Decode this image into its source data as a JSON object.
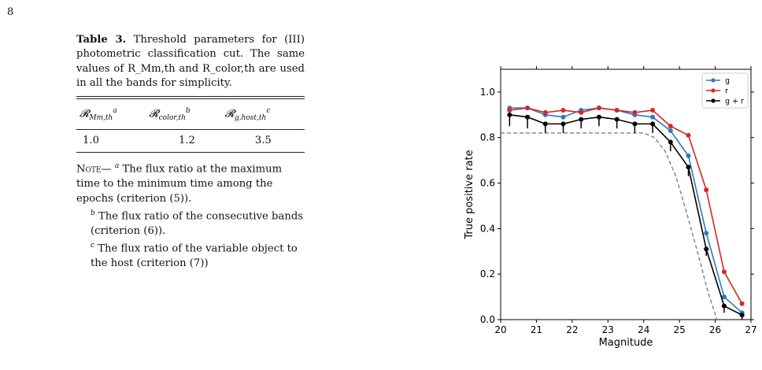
{
  "page_number": "8",
  "table": {
    "caption_label": "Table 3.",
    "caption_text": "Threshold parameters for (III) photometric classification cut. The same values of R_Mm,th and R_color,th are used in all the bands for simplicity.",
    "headers": [
      {
        "main": "𝓡",
        "sub": "Mm,th",
        "sup": "a"
      },
      {
        "main": "𝓡",
        "sub": "color,th",
        "sup": "b"
      },
      {
        "main": "𝓡",
        "sub": "g,host,th",
        "sup": "c"
      }
    ],
    "values": [
      "1.0",
      "1.2",
      "3.5"
    ],
    "note_label": "Note—",
    "notes": [
      {
        "mark": "a",
        "text": "The flux ratio at the maximum time to the minimum time among the epochs (criterion (5))."
      },
      {
        "mark": "b",
        "text": "The flux ratio of the consecutive bands (criterion (6))."
      },
      {
        "mark": "c",
        "text": "The flux ratio of the variable object to the host (criterion (7))"
      }
    ]
  },
  "chart_data": {
    "type": "line",
    "xlabel": "Magnitude",
    "ylabel": "True positive rate",
    "xlim": [
      20,
      27
    ],
    "ylim": [
      0,
      1.1
    ],
    "xticks": [
      20,
      21,
      22,
      23,
      24,
      25,
      26,
      27
    ],
    "yticks": [
      0.0,
      0.2,
      0.4,
      0.6,
      0.8,
      1.0
    ],
    "legend_position": "top-right",
    "x": [
      20.25,
      20.75,
      21.25,
      21.75,
      22.25,
      22.75,
      23.25,
      23.75,
      24.25,
      24.75,
      25.25,
      25.75,
      26.25,
      26.75
    ],
    "series": [
      {
        "name": "g",
        "color": "#2b7bb9",
        "values": [
          0.93,
          0.93,
          0.9,
          0.89,
          0.92,
          0.93,
          0.92,
          0.9,
          0.89,
          0.83,
          0.72,
          0.38,
          0.1,
          0.03
        ]
      },
      {
        "name": "r",
        "color": "#d62728",
        "values": [
          0.92,
          0.93,
          0.91,
          0.92,
          0.91,
          0.93,
          0.92,
          0.91,
          0.92,
          0.85,
          0.81,
          0.57,
          0.21,
          0.07
        ]
      },
      {
        "name": "g + r",
        "color": "#000000",
        "values": [
          0.9,
          0.89,
          0.86,
          0.86,
          0.88,
          0.89,
          0.88,
          0.86,
          0.86,
          0.78,
          0.67,
          0.31,
          0.06,
          0.02
        ],
        "error_low": [
          0.05,
          0.05,
          0.04,
          0.04,
          0.04,
          0.04,
          0.04,
          0.04,
          0.04,
          0.04,
          0.04,
          0.03,
          0.03,
          0.02
        ]
      }
    ],
    "reference_curve": {
      "style": "dashed",
      "color": "#808080",
      "x": [
        20.0,
        24.0,
        24.3,
        24.6,
        24.9,
        25.2,
        25.5,
        25.8,
        26.05
      ],
      "y": [
        0.82,
        0.82,
        0.8,
        0.74,
        0.63,
        0.47,
        0.3,
        0.12,
        0.0
      ]
    }
  }
}
